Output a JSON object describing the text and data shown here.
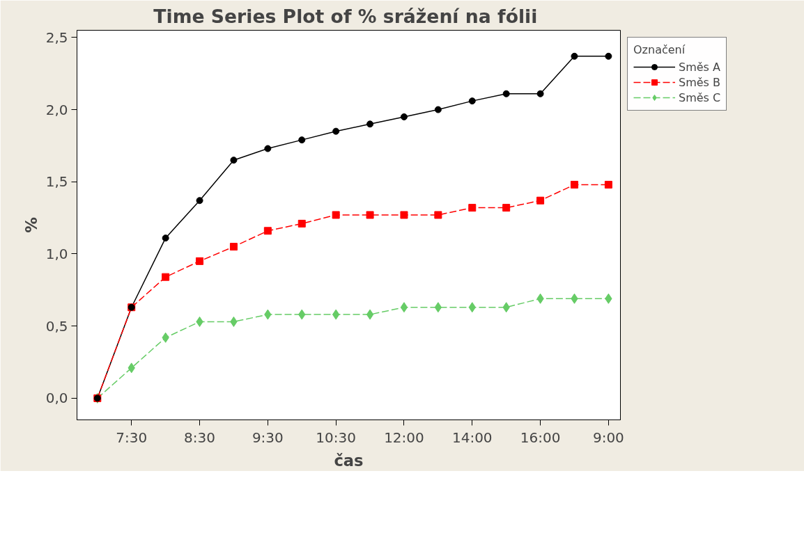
{
  "chart_data": {
    "type": "line",
    "title": "Time Series Plot of %  srážení na fólii",
    "xlabel": "čas",
    "ylabel": "%",
    "legend_title": "Označení",
    "legend": "top right",
    "grid": false,
    "categories": [
      null,
      "7:30",
      null,
      "8:30",
      null,
      "9:30",
      null,
      "10:30",
      null,
      "12:00",
      null,
      "14:00",
      null,
      "16:00",
      null,
      "9:00"
    ],
    "ylim": [
      -0.15,
      2.55
    ],
    "yticks": [
      {
        "value": 0,
        "label": "0,0"
      },
      {
        "value": 0.5,
        "label": "0,5"
      },
      {
        "value": 1,
        "label": "1,0"
      },
      {
        "value": 1.5,
        "label": "1,5"
      },
      {
        "value": 2,
        "label": "2,0"
      },
      {
        "value": 2.5,
        "label": "2,5"
      }
    ],
    "series": [
      {
        "name": "Směs A",
        "color": "#000000",
        "marker": "circle",
        "line_style": "solid",
        "values": [
          0,
          0.63,
          1.11,
          1.37,
          1.65,
          1.73,
          1.79,
          1.85,
          1.9,
          1.95,
          2.0,
          2.06,
          2.11,
          2.11,
          2.37,
          2.37
        ]
      },
      {
        "name": "Směs B",
        "color": "#ff0000",
        "marker": "square",
        "line_style": "dashed",
        "values": [
          0,
          0.63,
          0.84,
          0.95,
          1.05,
          1.16,
          1.21,
          1.27,
          1.27,
          1.27,
          1.27,
          1.32,
          1.32,
          1.37,
          1.48,
          1.48
        ]
      },
      {
        "name": "Směs C",
        "color": "#66cc66",
        "marker": "diamond",
        "line_style": "dashed",
        "values": [
          0,
          0.21,
          0.42,
          0.53,
          0.53,
          0.58,
          0.58,
          0.58,
          0.58,
          0.63,
          0.63,
          0.63,
          0.63,
          0.69,
          0.69,
          0.69
        ]
      }
    ]
  }
}
